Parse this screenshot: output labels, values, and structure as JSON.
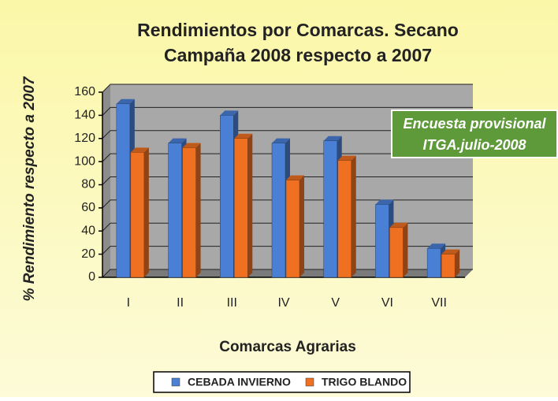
{
  "chart_data": {
    "type": "bar3d",
    "title": [
      "Rendimientos por Comarcas. Secano",
      "Campaña 2008 respecto a 2007"
    ],
    "y_label": "% Rendimiento respecto a 2007",
    "x_label": "Comarcas Agrarias",
    "annotation": [
      "Encuesta provisional",
      "ITGA.julio-2008"
    ],
    "categories": [
      "I",
      "II",
      "III",
      "IV",
      "V",
      "VI",
      "VII"
    ],
    "series": [
      {
        "name": "CEBADA INVIERNO",
        "color": "#4a7fd6",
        "values": [
          150,
          116,
          140,
          116,
          118,
          63,
          25
        ]
      },
      {
        "name": "TRIGO BLANDO",
        "color": "#f07022",
        "values": [
          108,
          112,
          120,
          84,
          101,
          43,
          20
        ]
      }
    ],
    "ylim": [
      0,
      160
    ],
    "yticks": [
      0,
      20,
      40,
      60,
      80,
      100,
      120,
      140,
      160
    ],
    "grid": true
  }
}
